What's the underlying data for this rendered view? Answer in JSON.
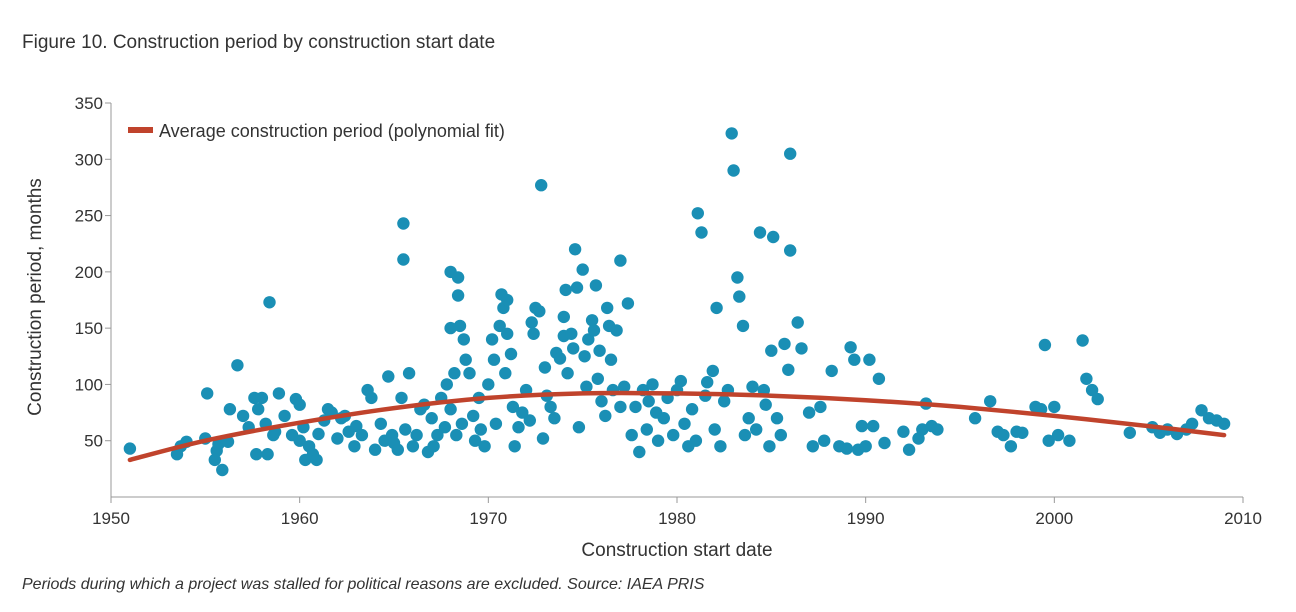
{
  "colors": {
    "points": "#1a8fb5",
    "fit_line": "#c0432c",
    "axis": "#999999"
  },
  "chart_data": {
    "type": "scatter",
    "title": "Figure 10. Construction period by construction start date",
    "xlabel": "Construction start date",
    "ylabel": "Construction period, months",
    "xlim": [
      1950,
      2010
    ],
    "ylim": [
      0,
      350
    ],
    "xticks": [
      "1950",
      "1960",
      "1970",
      "1980",
      "1990",
      "2000",
      "2010"
    ],
    "yticks": [
      "50",
      "100",
      "150",
      "200",
      "250",
      "300",
      "350"
    ],
    "legend": {
      "label": "Average construction period (polynomial fit)",
      "placement": "top-left"
    },
    "fit_line": {
      "name": "Average construction period (polynomial fit)",
      "x": [
        1951,
        1955,
        1960,
        1965,
        1970,
        1975,
        1980,
        1985,
        1990,
        1995,
        2000,
        2005,
        2009
      ],
      "y": [
        33,
        50,
        66,
        79,
        88,
        92,
        92,
        90,
        86,
        80,
        72,
        63,
        55
      ]
    },
    "points": [
      [
        1951,
        43
      ],
      [
        1953.5,
        38
      ],
      [
        1953.7,
        45
      ],
      [
        1954,
        49
      ],
      [
        1955,
        52
      ],
      [
        1955.1,
        92
      ],
      [
        1955.5,
        33
      ],
      [
        1955.6,
        41
      ],
      [
        1955.7,
        47
      ],
      [
        1955.9,
        24
      ],
      [
        1956.2,
        49
      ],
      [
        1956.3,
        78
      ],
      [
        1956.7,
        117
      ],
      [
        1957,
        72
      ],
      [
        1957.3,
        62
      ],
      [
        1957.6,
        88
      ],
      [
        1957.7,
        38
      ],
      [
        1957.8,
        78
      ],
      [
        1958,
        88
      ],
      [
        1958.2,
        65
      ],
      [
        1958.3,
        38
      ],
      [
        1958.4,
        173
      ],
      [
        1958.6,
        55
      ],
      [
        1958.7,
        58
      ],
      [
        1958.9,
        92
      ],
      [
        1959.2,
        72
      ],
      [
        1959.6,
        55
      ],
      [
        1959.8,
        87
      ],
      [
        1960,
        50
      ],
      [
        1960,
        82
      ],
      [
        1960.2,
        62
      ],
      [
        1960.3,
        33
      ],
      [
        1960.5,
        45
      ],
      [
        1960.7,
        38
      ],
      [
        1960.9,
        33
      ],
      [
        1961,
        56
      ],
      [
        1961.3,
        68
      ],
      [
        1961.5,
        78
      ],
      [
        1961.7,
        75
      ],
      [
        1962,
        52
      ],
      [
        1962.2,
        70
      ],
      [
        1962.4,
        72
      ],
      [
        1962.6,
        58
      ],
      [
        1962.9,
        45
      ],
      [
        1963,
        63
      ],
      [
        1963.3,
        55
      ],
      [
        1963.6,
        95
      ],
      [
        1963.8,
        88
      ],
      [
        1964,
        42
      ],
      [
        1964.3,
        65
      ],
      [
        1964.5,
        50
      ],
      [
        1964.7,
        107
      ],
      [
        1964.9,
        55
      ],
      [
        1965,
        48
      ],
      [
        1965.2,
        42
      ],
      [
        1965.4,
        88
      ],
      [
        1965.5,
        243
      ],
      [
        1965.5,
        211
      ],
      [
        1965.6,
        60
      ],
      [
        1965.8,
        110
      ],
      [
        1966,
        45
      ],
      [
        1966.2,
        55
      ],
      [
        1966.4,
        78
      ],
      [
        1966.6,
        82
      ],
      [
        1966.8,
        40
      ],
      [
        1967,
        70
      ],
      [
        1967.1,
        45
      ],
      [
        1967.3,
        55
      ],
      [
        1967.5,
        88
      ],
      [
        1967.7,
        62
      ],
      [
        1967.8,
        100
      ],
      [
        1968,
        78
      ],
      [
        1968,
        150
      ],
      [
        1968,
        200
      ],
      [
        1968.2,
        110
      ],
      [
        1968.3,
        55
      ],
      [
        1968.4,
        195
      ],
      [
        1968.4,
        179
      ],
      [
        1968.5,
        152
      ],
      [
        1968.6,
        65
      ],
      [
        1968.7,
        140
      ],
      [
        1968.8,
        122
      ],
      [
        1969,
        110
      ],
      [
        1969.2,
        72
      ],
      [
        1969.3,
        50
      ],
      [
        1969.5,
        88
      ],
      [
        1969.6,
        60
      ],
      [
        1969.8,
        45
      ],
      [
        1970,
        100
      ],
      [
        1970.2,
        140
      ],
      [
        1970.3,
        122
      ],
      [
        1970.4,
        65
      ],
      [
        1970.6,
        152
      ],
      [
        1970.7,
        180
      ],
      [
        1970.8,
        168
      ],
      [
        1970.9,
        110
      ],
      [
        1971,
        145
      ],
      [
        1971,
        175
      ],
      [
        1971.2,
        127
      ],
      [
        1971.3,
        80
      ],
      [
        1971.4,
        45
      ],
      [
        1971.6,
        62
      ],
      [
        1971.8,
        75
      ],
      [
        1972,
        95
      ],
      [
        1972.2,
        68
      ],
      [
        1972.3,
        155
      ],
      [
        1972.4,
        145
      ],
      [
        1972.5,
        168
      ],
      [
        1972.7,
        165
      ],
      [
        1972.8,
        277
      ],
      [
        1972.9,
        52
      ],
      [
        1973,
        115
      ],
      [
        1973.1,
        90
      ],
      [
        1973.3,
        80
      ],
      [
        1973.5,
        70
      ],
      [
        1973.6,
        128
      ],
      [
        1973.8,
        123
      ],
      [
        1974,
        160
      ],
      [
        1974,
        143
      ],
      [
        1974.1,
        184
      ],
      [
        1974.2,
        110
      ],
      [
        1974.4,
        145
      ],
      [
        1974.5,
        132
      ],
      [
        1974.6,
        220
      ],
      [
        1974.7,
        186
      ],
      [
        1974.8,
        62
      ],
      [
        1975,
        202
      ],
      [
        1975.1,
        125
      ],
      [
        1975.2,
        98
      ],
      [
        1975.3,
        140
      ],
      [
        1975.5,
        157
      ],
      [
        1975.6,
        148
      ],
      [
        1975.7,
        188
      ],
      [
        1975.8,
        105
      ],
      [
        1975.9,
        130
      ],
      [
        1976,
        85
      ],
      [
        1976.2,
        72
      ],
      [
        1976.3,
        168
      ],
      [
        1976.4,
        152
      ],
      [
        1976.5,
        122
      ],
      [
        1976.6,
        95
      ],
      [
        1976.8,
        148
      ],
      [
        1977,
        80
      ],
      [
        1977,
        210
      ],
      [
        1977.2,
        98
      ],
      [
        1977.4,
        172
      ],
      [
        1977.6,
        55
      ],
      [
        1977.8,
        80
      ],
      [
        1978,
        40
      ],
      [
        1978.2,
        95
      ],
      [
        1978.4,
        60
      ],
      [
        1978.5,
        85
      ],
      [
        1978.7,
        100
      ],
      [
        1978.9,
        75
      ],
      [
        1979,
        50
      ],
      [
        1979.3,
        70
      ],
      [
        1979.5,
        88
      ],
      [
        1979.8,
        55
      ],
      [
        1980,
        95
      ],
      [
        1980.2,
        103
      ],
      [
        1980.4,
        65
      ],
      [
        1980.6,
        45
      ],
      [
        1980.8,
        78
      ],
      [
        1981,
        50
      ],
      [
        1981.1,
        252
      ],
      [
        1981.3,
        235
      ],
      [
        1981.5,
        90
      ],
      [
        1981.6,
        102
      ],
      [
        1981.9,
        112
      ],
      [
        1982,
        60
      ],
      [
        1982.1,
        168
      ],
      [
        1982.3,
        45
      ],
      [
        1982.5,
        85
      ],
      [
        1982.7,
        95
      ],
      [
        1982.9,
        323
      ],
      [
        1983,
        290
      ],
      [
        1983.2,
        195
      ],
      [
        1983.3,
        178
      ],
      [
        1983.5,
        152
      ],
      [
        1983.6,
        55
      ],
      [
        1983.8,
        70
      ],
      [
        1984,
        98
      ],
      [
        1984.2,
        60
      ],
      [
        1984.4,
        235
      ],
      [
        1984.6,
        95
      ],
      [
        1984.7,
        82
      ],
      [
        1984.9,
        45
      ],
      [
        1985,
        130
      ],
      [
        1985.1,
        231
      ],
      [
        1985.3,
        70
      ],
      [
        1985.5,
        55
      ],
      [
        1985.7,
        136
      ],
      [
        1985.9,
        113
      ],
      [
        1986,
        305
      ],
      [
        1986,
        219
      ],
      [
        1986.4,
        155
      ],
      [
        1986.6,
        132
      ],
      [
        1987,
        75
      ],
      [
        1987.2,
        45
      ],
      [
        1987.6,
        80
      ],
      [
        1987.8,
        50
      ],
      [
        1988.2,
        112
      ],
      [
        1988.6,
        45
      ],
      [
        1989,
        43
      ],
      [
        1989.2,
        133
      ],
      [
        1989.4,
        122
      ],
      [
        1989.6,
        42
      ],
      [
        1989.8,
        63
      ],
      [
        1990,
        45
      ],
      [
        1990.2,
        122
      ],
      [
        1990.4,
        63
      ],
      [
        1990.7,
        105
      ],
      [
        1991,
        48
      ],
      [
        1992,
        58
      ],
      [
        1992.3,
        42
      ],
      [
        1992.8,
        52
      ],
      [
        1993,
        60
      ],
      [
        1993.2,
        83
      ],
      [
        1993.5,
        63
      ],
      [
        1993.8,
        60
      ],
      [
        1995.8,
        70
      ],
      [
        1996.6,
        85
      ],
      [
        1997,
        58
      ],
      [
        1997.3,
        55
      ],
      [
        1997.7,
        45
      ],
      [
        1998,
        58
      ],
      [
        1998.3,
        57
      ],
      [
        1999,
        80
      ],
      [
        1999.3,
        78
      ],
      [
        1999.5,
        135
      ],
      [
        1999.7,
        50
      ],
      [
        2000,
        80
      ],
      [
        2000.2,
        55
      ],
      [
        2000.8,
        50
      ],
      [
        2001.5,
        139
      ],
      [
        2001.7,
        105
      ],
      [
        2002,
        95
      ],
      [
        2002.3,
        87
      ],
      [
        2004,
        57
      ],
      [
        2005.2,
        62
      ],
      [
        2005.6,
        57
      ],
      [
        2006,
        60
      ],
      [
        2006.5,
        56
      ],
      [
        2007,
        60
      ],
      [
        2007.3,
        65
      ],
      [
        2007.8,
        77
      ],
      [
        2008.2,
        70
      ],
      [
        2008.6,
        68
      ],
      [
        2009,
        65
      ]
    ]
  }
}
